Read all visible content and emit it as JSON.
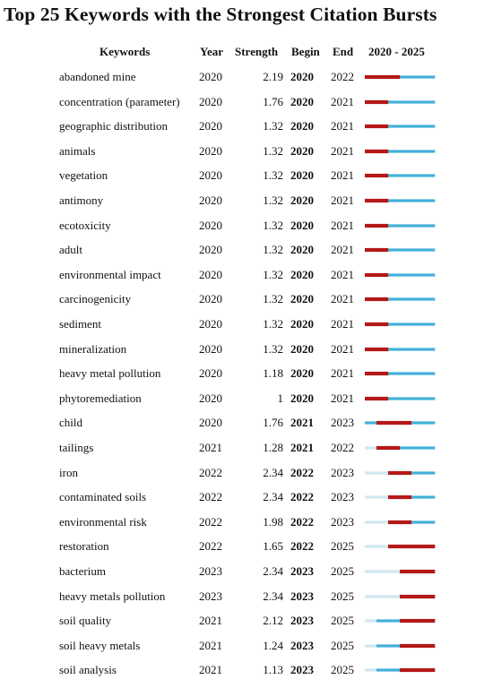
{
  "chart_data": {
    "type": "table",
    "title": "Top 25 Keywords with the Strongest Citation Bursts",
    "columns": [
      "Keywords",
      "Year",
      "Strength",
      "Begin",
      "End",
      "2020 - 2025"
    ],
    "timeline": {
      "start": 2020,
      "end": 2025
    },
    "colors": {
      "burst": "#b51818",
      "active": "#42b0d8",
      "inactive": "#cfe7f1"
    },
    "rows": [
      {
        "keyword": "abandoned mine",
        "year": "2020",
        "strength": "2.19",
        "begin": "2020",
        "end": "2022"
      },
      {
        "keyword": "concentration (parameter)",
        "year": "2020",
        "strength": "1.76",
        "begin": "2020",
        "end": "2021"
      },
      {
        "keyword": "geographic distribution",
        "year": "2020",
        "strength": "1.32",
        "begin": "2020",
        "end": "2021"
      },
      {
        "keyword": "animals",
        "year": "2020",
        "strength": "1.32",
        "begin": "2020",
        "end": "2021"
      },
      {
        "keyword": "vegetation",
        "year": "2020",
        "strength": "1.32",
        "begin": "2020",
        "end": "2021"
      },
      {
        "keyword": "antimony",
        "year": "2020",
        "strength": "1.32",
        "begin": "2020",
        "end": "2021"
      },
      {
        "keyword": "ecotoxicity",
        "year": "2020",
        "strength": "1.32",
        "begin": "2020",
        "end": "2021"
      },
      {
        "keyword": "adult",
        "year": "2020",
        "strength": "1.32",
        "begin": "2020",
        "end": "2021"
      },
      {
        "keyword": "environmental impact",
        "year": "2020",
        "strength": "1.32",
        "begin": "2020",
        "end": "2021"
      },
      {
        "keyword": "carcinogenicity",
        "year": "2020",
        "strength": "1.32",
        "begin": "2020",
        "end": "2021"
      },
      {
        "keyword": "sediment",
        "year": "2020",
        "strength": "1.32",
        "begin": "2020",
        "end": "2021"
      },
      {
        "keyword": "mineralization",
        "year": "2020",
        "strength": "1.32",
        "begin": "2020",
        "end": "2021"
      },
      {
        "keyword": "heavy metal pollution",
        "year": "2020",
        "strength": "1.18",
        "begin": "2020",
        "end": "2021"
      },
      {
        "keyword": "phytoremediation",
        "year": "2020",
        "strength": "1",
        "begin": "2020",
        "end": "2021"
      },
      {
        "keyword": "child",
        "year": "2020",
        "strength": "1.76",
        "begin": "2021",
        "end": "2023"
      },
      {
        "keyword": "tailings",
        "year": "2021",
        "strength": "1.28",
        "begin": "2021",
        "end": "2022"
      },
      {
        "keyword": "iron",
        "year": "2022",
        "strength": "2.34",
        "begin": "2022",
        "end": "2023"
      },
      {
        "keyword": "contaminated soils",
        "year": "2022",
        "strength": "2.34",
        "begin": "2022",
        "end": "2023"
      },
      {
        "keyword": "environmental risk",
        "year": "2022",
        "strength": "1.98",
        "begin": "2022",
        "end": "2023"
      },
      {
        "keyword": "restoration",
        "year": "2022",
        "strength": "1.65",
        "begin": "2022",
        "end": "2025"
      },
      {
        "keyword": "bacterium",
        "year": "2023",
        "strength": "2.34",
        "begin": "2023",
        "end": "2025"
      },
      {
        "keyword": "heavy metals pollution",
        "year": "2023",
        "strength": "2.34",
        "begin": "2023",
        "end": "2025"
      },
      {
        "keyword": "soil quality",
        "year": "2021",
        "strength": "2.12",
        "begin": "2023",
        "end": "2025"
      },
      {
        "keyword": "soil heavy metals",
        "year": "2021",
        "strength": "1.24",
        "begin": "2023",
        "end": "2025"
      },
      {
        "keyword": "soil analysis",
        "year": "2021",
        "strength": "1.13",
        "begin": "2023",
        "end": "2025"
      }
    ]
  }
}
